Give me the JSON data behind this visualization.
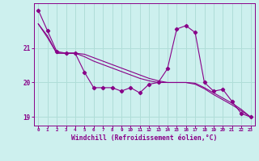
{
  "xlabel": "Windchill (Refroidissement éolien,°C)",
  "background_color": "#cdf0ee",
  "grid_color": "#b0ddd8",
  "line_color": "#880088",
  "x": [
    0,
    1,
    2,
    3,
    4,
    5,
    6,
    7,
    8,
    9,
    10,
    11,
    12,
    13,
    14,
    15,
    16,
    17,
    18,
    19,
    20,
    21,
    22,
    23
  ],
  "y_main": [
    22.1,
    21.5,
    20.9,
    20.85,
    20.85,
    20.3,
    19.85,
    19.85,
    19.85,
    19.75,
    19.85,
    19.7,
    19.95,
    20.0,
    20.4,
    21.55,
    21.65,
    21.45,
    20.0,
    19.75,
    19.8,
    19.45,
    19.1,
    19.0
  ],
  "y_line1": [
    21.7,
    21.35,
    20.85,
    20.85,
    20.85,
    20.75,
    20.62,
    20.52,
    20.42,
    20.32,
    20.22,
    20.12,
    20.05,
    20.0,
    20.0,
    20.0,
    20.0,
    19.95,
    19.82,
    19.65,
    19.5,
    19.35,
    19.18,
    19.0
  ],
  "y_line2": [
    21.7,
    21.3,
    20.85,
    20.85,
    20.85,
    20.82,
    20.72,
    20.62,
    20.52,
    20.42,
    20.32,
    20.22,
    20.12,
    20.05,
    20.0,
    20.0,
    20.0,
    19.98,
    19.85,
    19.7,
    19.55,
    19.4,
    19.22,
    19.0
  ],
  "ylim": [
    18.75,
    22.3
  ],
  "yticks": [
    19,
    20,
    21
  ],
  "xlim": [
    -0.5,
    23.5
  ],
  "xtick_fontsize": 4.2,
  "ytick_fontsize": 5.5,
  "xlabel_fontsize": 5.8
}
